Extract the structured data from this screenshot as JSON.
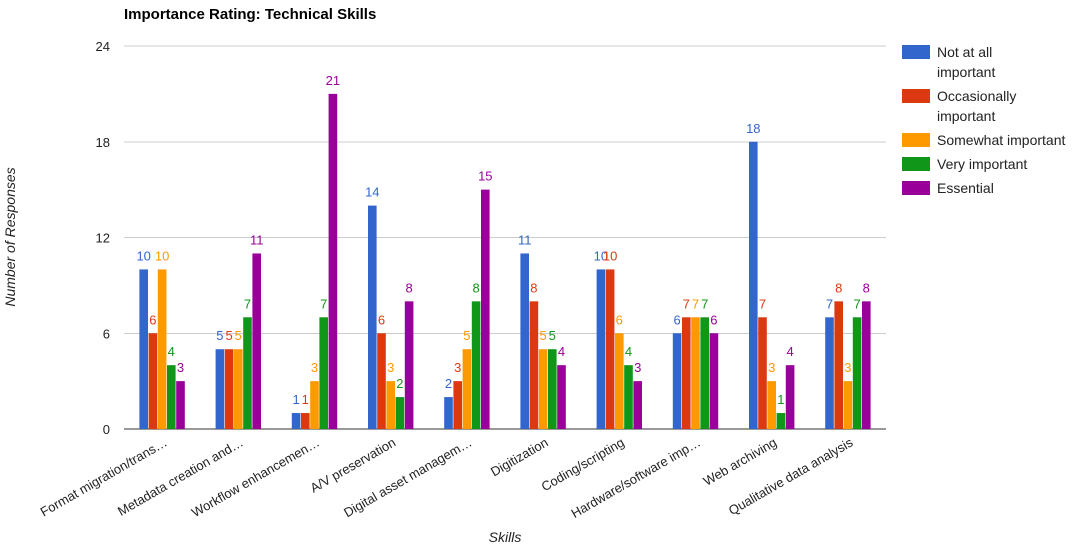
{
  "chart_data": {
    "type": "bar",
    "title": "Importance Rating: Technical Skills",
    "xlabel": "Skills",
    "ylabel": "Number of Responses",
    "ylim": [
      0,
      24
    ],
    "yticks": [
      "0",
      "6",
      "12",
      "18",
      "24"
    ],
    "grid": true,
    "legend_position": "right",
    "categories": [
      "Format migration/trans…",
      "Metadata creation and…",
      "Workflow enhancemen…",
      "A/V preservation",
      "Digital asset managem…",
      "Digitization",
      "Coding/scripting",
      "Hardware/software imp…",
      "Web archiving",
      "Qualitative data analysis"
    ],
    "series": [
      {
        "name": "Not at all important",
        "color": "#3366cc",
        "values": [
          10,
          5,
          1,
          14,
          2,
          11,
          10,
          6,
          18,
          7
        ]
      },
      {
        "name": "Occasionally important",
        "color": "#dc3912",
        "values": [
          6,
          5,
          1,
          6,
          3,
          8,
          10,
          7,
          7,
          8
        ]
      },
      {
        "name": "Somewhat important",
        "color": "#ff9900",
        "values": [
          10,
          5,
          3,
          3,
          5,
          5,
          6,
          7,
          3,
          3
        ]
      },
      {
        "name": "Very important",
        "color": "#109618",
        "values": [
          4,
          7,
          7,
          2,
          8,
          5,
          4,
          7,
          1,
          7
        ]
      },
      {
        "name": "Essential",
        "color": "#990099",
        "values": [
          3,
          11,
          21,
          8,
          15,
          4,
          3,
          6,
          4,
          8
        ]
      }
    ]
  }
}
